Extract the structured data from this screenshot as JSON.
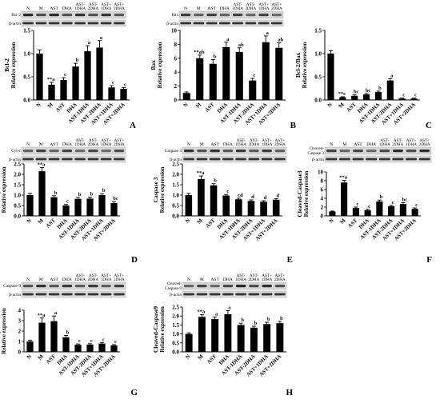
{
  "categories": [
    "N",
    "M",
    "AST",
    "DHA",
    "AST-1DHA",
    "AST-2DHA",
    "AST+1DHA",
    "AST+2DHA"
  ],
  "blot_header": [
    [
      "N",
      ""
    ],
    [
      "M",
      ""
    ],
    [
      "AST",
      ""
    ],
    [
      "DHA",
      ""
    ],
    [
      "AST-",
      "1DHA"
    ],
    [
      "AST-",
      "2DHA"
    ],
    [
      "AST+",
      "1DHA"
    ],
    [
      "AST+",
      "2DHA"
    ]
  ],
  "blot_label_bactin": "β-actin",
  "chart_data": [
    {
      "type": "bar",
      "panel": "A",
      "blot_label": [
        "Bcl-2"
      ],
      "ylabel": [
        "Relative expression",
        "Bcl-2"
      ],
      "ylim": [
        0,
        1.5
      ],
      "yticks": [
        0,
        0.5,
        1,
        1.5
      ],
      "tick_labels": [
        "0.0",
        "0.5",
        "1.0",
        "1.5"
      ],
      "values": [
        1.0,
        0.33,
        0.43,
        0.72,
        1.05,
        1.13,
        0.27,
        0.24
      ],
      "errors": [
        0.08,
        0.05,
        0.05,
        0.07,
        0.12,
        0.15,
        0.04,
        0.03
      ],
      "labels": [
        "",
        "**a",
        "c",
        "b",
        "a",
        "a",
        "c",
        "c"
      ]
    },
    {
      "type": "bar",
      "panel": "B",
      "blot_label": [
        "Bax"
      ],
      "ylabel": [
        "Relative expression",
        "Bax"
      ],
      "ylim": [
        0,
        10
      ],
      "yticks": [
        0,
        2,
        4,
        6,
        8,
        10
      ],
      "tick_labels": [
        "0",
        "2",
        "4",
        "6",
        "8",
        "10"
      ],
      "values": [
        1.0,
        6.0,
        5.2,
        7.6,
        6.9,
        2.8,
        8.3,
        7.5
      ],
      "errors": [
        0.15,
        0.45,
        0.6,
        0.7,
        0.6,
        0.3,
        0.9,
        0.7
      ],
      "labels": [
        "",
        "**ab",
        "b",
        "a",
        "ab",
        "c",
        "a",
        "ab"
      ]
    },
    {
      "type": "bar",
      "panel": "C",
      "blot_label": [],
      "ylabel": [
        "Relative expression",
        "Bcl-2/Bax"
      ],
      "ylim": [
        0,
        1.5
      ],
      "yticks": [
        0,
        0.5,
        1,
        1.5
      ],
      "tick_labels": [
        "0.0",
        "0.5",
        "1.0",
        "1.5"
      ],
      "values": [
        1.0,
        0.06,
        0.09,
        0.12,
        0.17,
        0.42,
        0.03,
        0.03
      ],
      "errors": [
        0.06,
        0.01,
        0.02,
        0.02,
        0.02,
        0.04,
        0.01,
        0.01
      ],
      "labels": [
        "",
        "**c",
        "bc",
        "bc",
        "b",
        "a",
        "c",
        "c"
      ]
    },
    {
      "type": "bar",
      "panel": "D",
      "blot_label": [
        "Cyt-c"
      ],
      "ylabel": [
        "Relative expression",
        "Cyt-C"
      ],
      "ylim": [
        0,
        2.5
      ],
      "yticks": [
        0,
        0.5,
        1,
        1.5,
        2,
        2.5
      ],
      "tick_labels": [
        "0.0",
        "0.5",
        "1.0",
        "1.5",
        "2.0",
        "2.5"
      ],
      "values": [
        1.0,
        2.15,
        0.9,
        0.5,
        0.82,
        0.83,
        1.0,
        0.62
      ],
      "errors": [
        0.08,
        0.18,
        0.07,
        0.05,
        0.07,
        0.07,
        0.07,
        0.07
      ],
      "labels": [
        "",
        "**a",
        "b",
        "c",
        "b",
        "b",
        "b",
        "bc"
      ]
    },
    {
      "type": "bar",
      "panel": "E",
      "blot_label": [
        "Caspase 3"
      ],
      "ylabel": [
        "Relative expression",
        "Caspase 3"
      ],
      "ylim": [
        0,
        2.5
      ],
      "yticks": [
        0,
        0.5,
        1,
        1.5,
        2,
        2.5
      ],
      "tick_labels": [
        "0.0",
        "0.5",
        "1.0",
        "1.5",
        "2.0",
        "2.5"
      ],
      "values": [
        1.0,
        1.77,
        1.47,
        0.98,
        0.8,
        0.72,
        0.68,
        0.78
      ],
      "errors": [
        0.08,
        0.15,
        0.08,
        0.05,
        0.05,
        0.05,
        0.05,
        0.05
      ],
      "labels": [
        "",
        "**a",
        "b",
        "c",
        "cd",
        "d",
        "d",
        "d"
      ]
    },
    {
      "type": "bar",
      "panel": "F",
      "blot_label": [
        "Cleaved-",
        "Caspase 3"
      ],
      "ylabel": [
        "Relative expression",
        "Cleaved-Caspase3"
      ],
      "ylim": [
        0,
        10
      ],
      "yticks": [
        0,
        2,
        4,
        6,
        8,
        10
      ],
      "tick_labels": [
        "0",
        "2",
        "4",
        "6",
        "8",
        "10"
      ],
      "values": [
        1.0,
        7.6,
        1.8,
        1.3,
        3.3,
        2.2,
        2.7,
        1.6
      ],
      "errors": [
        0.1,
        0.5,
        0.2,
        0.2,
        0.3,
        0.2,
        0.3,
        0.2
      ],
      "labels": [
        "",
        "**a",
        "c",
        "c",
        "b",
        "c",
        "bc",
        "c"
      ]
    },
    {
      "type": "bar",
      "panel": "G",
      "blot_label": [
        "Caspase-9"
      ],
      "ylabel": [
        "Relative expression",
        "Caspase9"
      ],
      "ylim": [
        0,
        4
      ],
      "yticks": [
        0,
        1,
        2,
        3,
        4
      ],
      "tick_labels": [
        "0",
        "1",
        "2",
        "3",
        "4"
      ],
      "values": [
        1.0,
        2.8,
        2.95,
        1.4,
        0.68,
        0.7,
        0.8,
        0.62
      ],
      "errors": [
        0.12,
        0.45,
        0.5,
        0.18,
        0.08,
        0.08,
        0.1,
        0.08
      ],
      "labels": [
        "",
        "**a",
        "a",
        "b",
        "c",
        "c",
        "c",
        "c"
      ]
    },
    {
      "type": "bar",
      "panel": "H",
      "blot_label": [
        "Cleaved-",
        "Caspase-9"
      ],
      "ylabel": [
        "Relative expression",
        "Cleaved-Caspase9"
      ],
      "ylim": [
        0,
        2.5
      ],
      "yticks": [
        0,
        0.5,
        1,
        1.5,
        2,
        2.5
      ],
      "tick_labels": [
        "0.0",
        "0.5",
        "1.0",
        "1.5",
        "2.0",
        "2.5"
      ],
      "values": [
        1.0,
        1.95,
        1.83,
        2.1,
        1.5,
        1.35,
        1.55,
        1.6
      ],
      "errors": [
        0.06,
        0.12,
        0.12,
        0.2,
        0.1,
        0.08,
        0.1,
        0.1
      ],
      "labels": [
        "",
        "**a",
        "a",
        "a",
        "b",
        "b",
        "b",
        "b"
      ]
    }
  ]
}
